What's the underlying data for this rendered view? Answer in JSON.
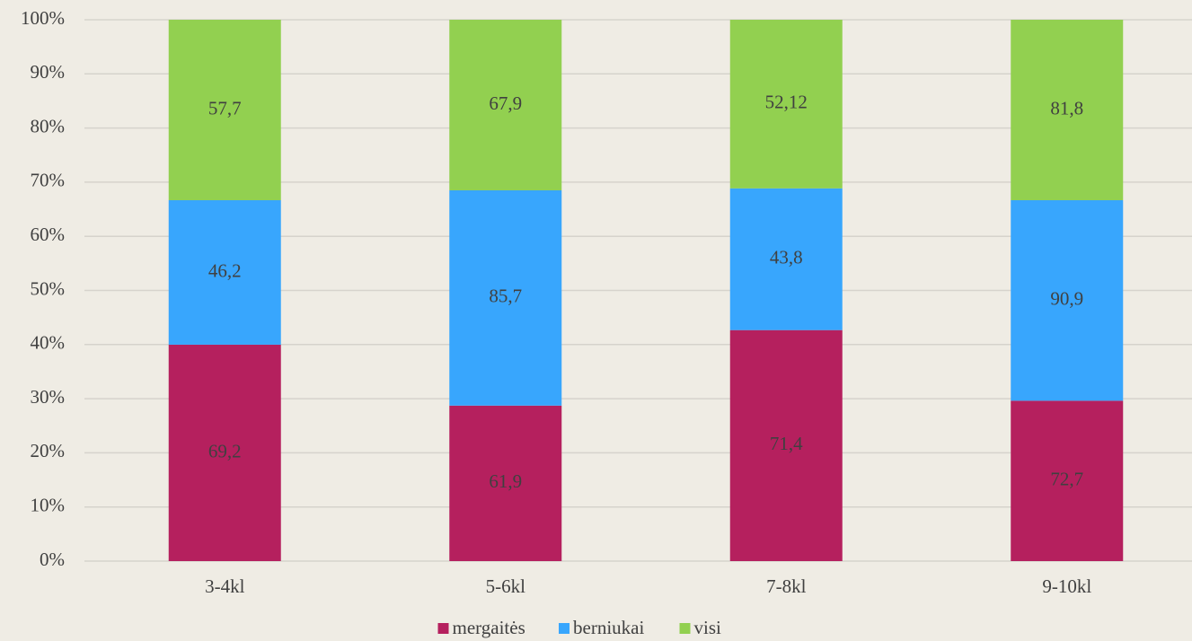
{
  "chart_data": {
    "type": "bar",
    "stacked": "percent",
    "categories": [
      "3-4kl",
      "5-6kl",
      "7-8kl",
      "9-10kl"
    ],
    "series": [
      {
        "name": "mergaitės",
        "color": "#b5205e",
        "values": [
          69.2,
          61.9,
          71.4,
          72.7
        ],
        "value_labels": [
          "69,2",
          "61,9",
          "71,4",
          "72,7"
        ]
      },
      {
        "name": "berniukai",
        "color": "#38a6fd",
        "values": [
          46.2,
          85.7,
          43.8,
          90.9
        ],
        "value_labels": [
          "46,2",
          "85,7",
          "43,8",
          "90,9"
        ]
      },
      {
        "name": "visi",
        "color": "#92d050",
        "values": [
          57.7,
          67.9,
          52.12,
          81.8
        ],
        "value_labels": [
          "57,7",
          "67,9",
          "52,12",
          "81,8"
        ]
      }
    ],
    "ylim": [
      0,
      100
    ],
    "yticks": [
      {
        "value": 0,
        "label": "0%"
      },
      {
        "value": 10,
        "label": "10%"
      },
      {
        "value": 20,
        "label": "20%"
      },
      {
        "value": 30,
        "label": "30%"
      },
      {
        "value": 40,
        "label": "40%"
      },
      {
        "value": 50,
        "label": "50%"
      },
      {
        "value": 60,
        "label": "60%"
      },
      {
        "value": 70,
        "label": "70%"
      },
      {
        "value": 80,
        "label": "80%"
      },
      {
        "value": 90,
        "label": "90%"
      },
      {
        "value": 100,
        "label": "100%"
      }
    ],
    "grid": true,
    "legend": "bottom"
  }
}
